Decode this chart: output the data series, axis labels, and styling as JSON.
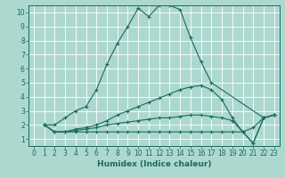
{
  "xlabel": "Humidex (Indice chaleur)",
  "ylabel": "",
  "bg_color": "#add8d0",
  "grid_color": "#c8e8e4",
  "line_color": "#1a6b5a",
  "xlim": [
    -0.5,
    23.5
  ],
  "ylim": [
    0.5,
    10.5
  ],
  "yticks": [
    1,
    2,
    3,
    4,
    5,
    6,
    7,
    8,
    9,
    10
  ],
  "xticks": [
    0,
    1,
    2,
    3,
    4,
    5,
    6,
    7,
    8,
    9,
    10,
    11,
    12,
    13,
    14,
    15,
    16,
    17,
    18,
    19,
    20,
    21,
    22,
    23
  ],
  "lines": [
    {
      "x": [
        1,
        2,
        3,
        4,
        5,
        6,
        7,
        8,
        9,
        10,
        11,
        12,
        13,
        14,
        15,
        16,
        17,
        22,
        23
      ],
      "y": [
        2,
        2,
        2.5,
        3,
        3.3,
        4.5,
        6.3,
        7.8,
        9.0,
        10.3,
        9.7,
        10.5,
        10.5,
        10.2,
        8.2,
        6.5,
        5.0,
        2.5,
        2.7
      ]
    },
    {
      "x": [
        1,
        2,
        3,
        4,
        5,
        6,
        7,
        8,
        9,
        10,
        11,
        12,
        13,
        14,
        15,
        16,
        17,
        18,
        19,
        20,
        21,
        22,
        23
      ],
      "y": [
        2,
        1.5,
        1.5,
        1.7,
        1.8,
        2.0,
        2.3,
        2.7,
        3.0,
        3.3,
        3.6,
        3.9,
        4.2,
        4.5,
        4.7,
        4.8,
        4.5,
        3.8,
        2.5,
        1.5,
        1.8,
        2.5,
        2.7
      ]
    },
    {
      "x": [
        1,
        2,
        3,
        4,
        5,
        6,
        7,
        8,
        9,
        10,
        11,
        12,
        13,
        14,
        15,
        16,
        17,
        18,
        19,
        20,
        21,
        22,
        23
      ],
      "y": [
        2,
        1.5,
        1.5,
        1.6,
        1.7,
        1.8,
        2.0,
        2.1,
        2.2,
        2.3,
        2.4,
        2.5,
        2.5,
        2.6,
        2.7,
        2.7,
        2.6,
        2.5,
        2.3,
        1.5,
        0.7,
        2.5,
        2.7
      ]
    },
    {
      "x": [
        1,
        2,
        3,
        4,
        5,
        6,
        7,
        8,
        9,
        10,
        11,
        12,
        13,
        14,
        15,
        16,
        17,
        18,
        19,
        20,
        21,
        22,
        23
      ],
      "y": [
        2,
        1.5,
        1.5,
        1.5,
        1.5,
        1.5,
        1.5,
        1.5,
        1.5,
        1.5,
        1.5,
        1.5,
        1.5,
        1.5,
        1.5,
        1.5,
        1.5,
        1.5,
        1.5,
        1.5,
        0.7,
        2.5,
        2.7
      ]
    }
  ]
}
